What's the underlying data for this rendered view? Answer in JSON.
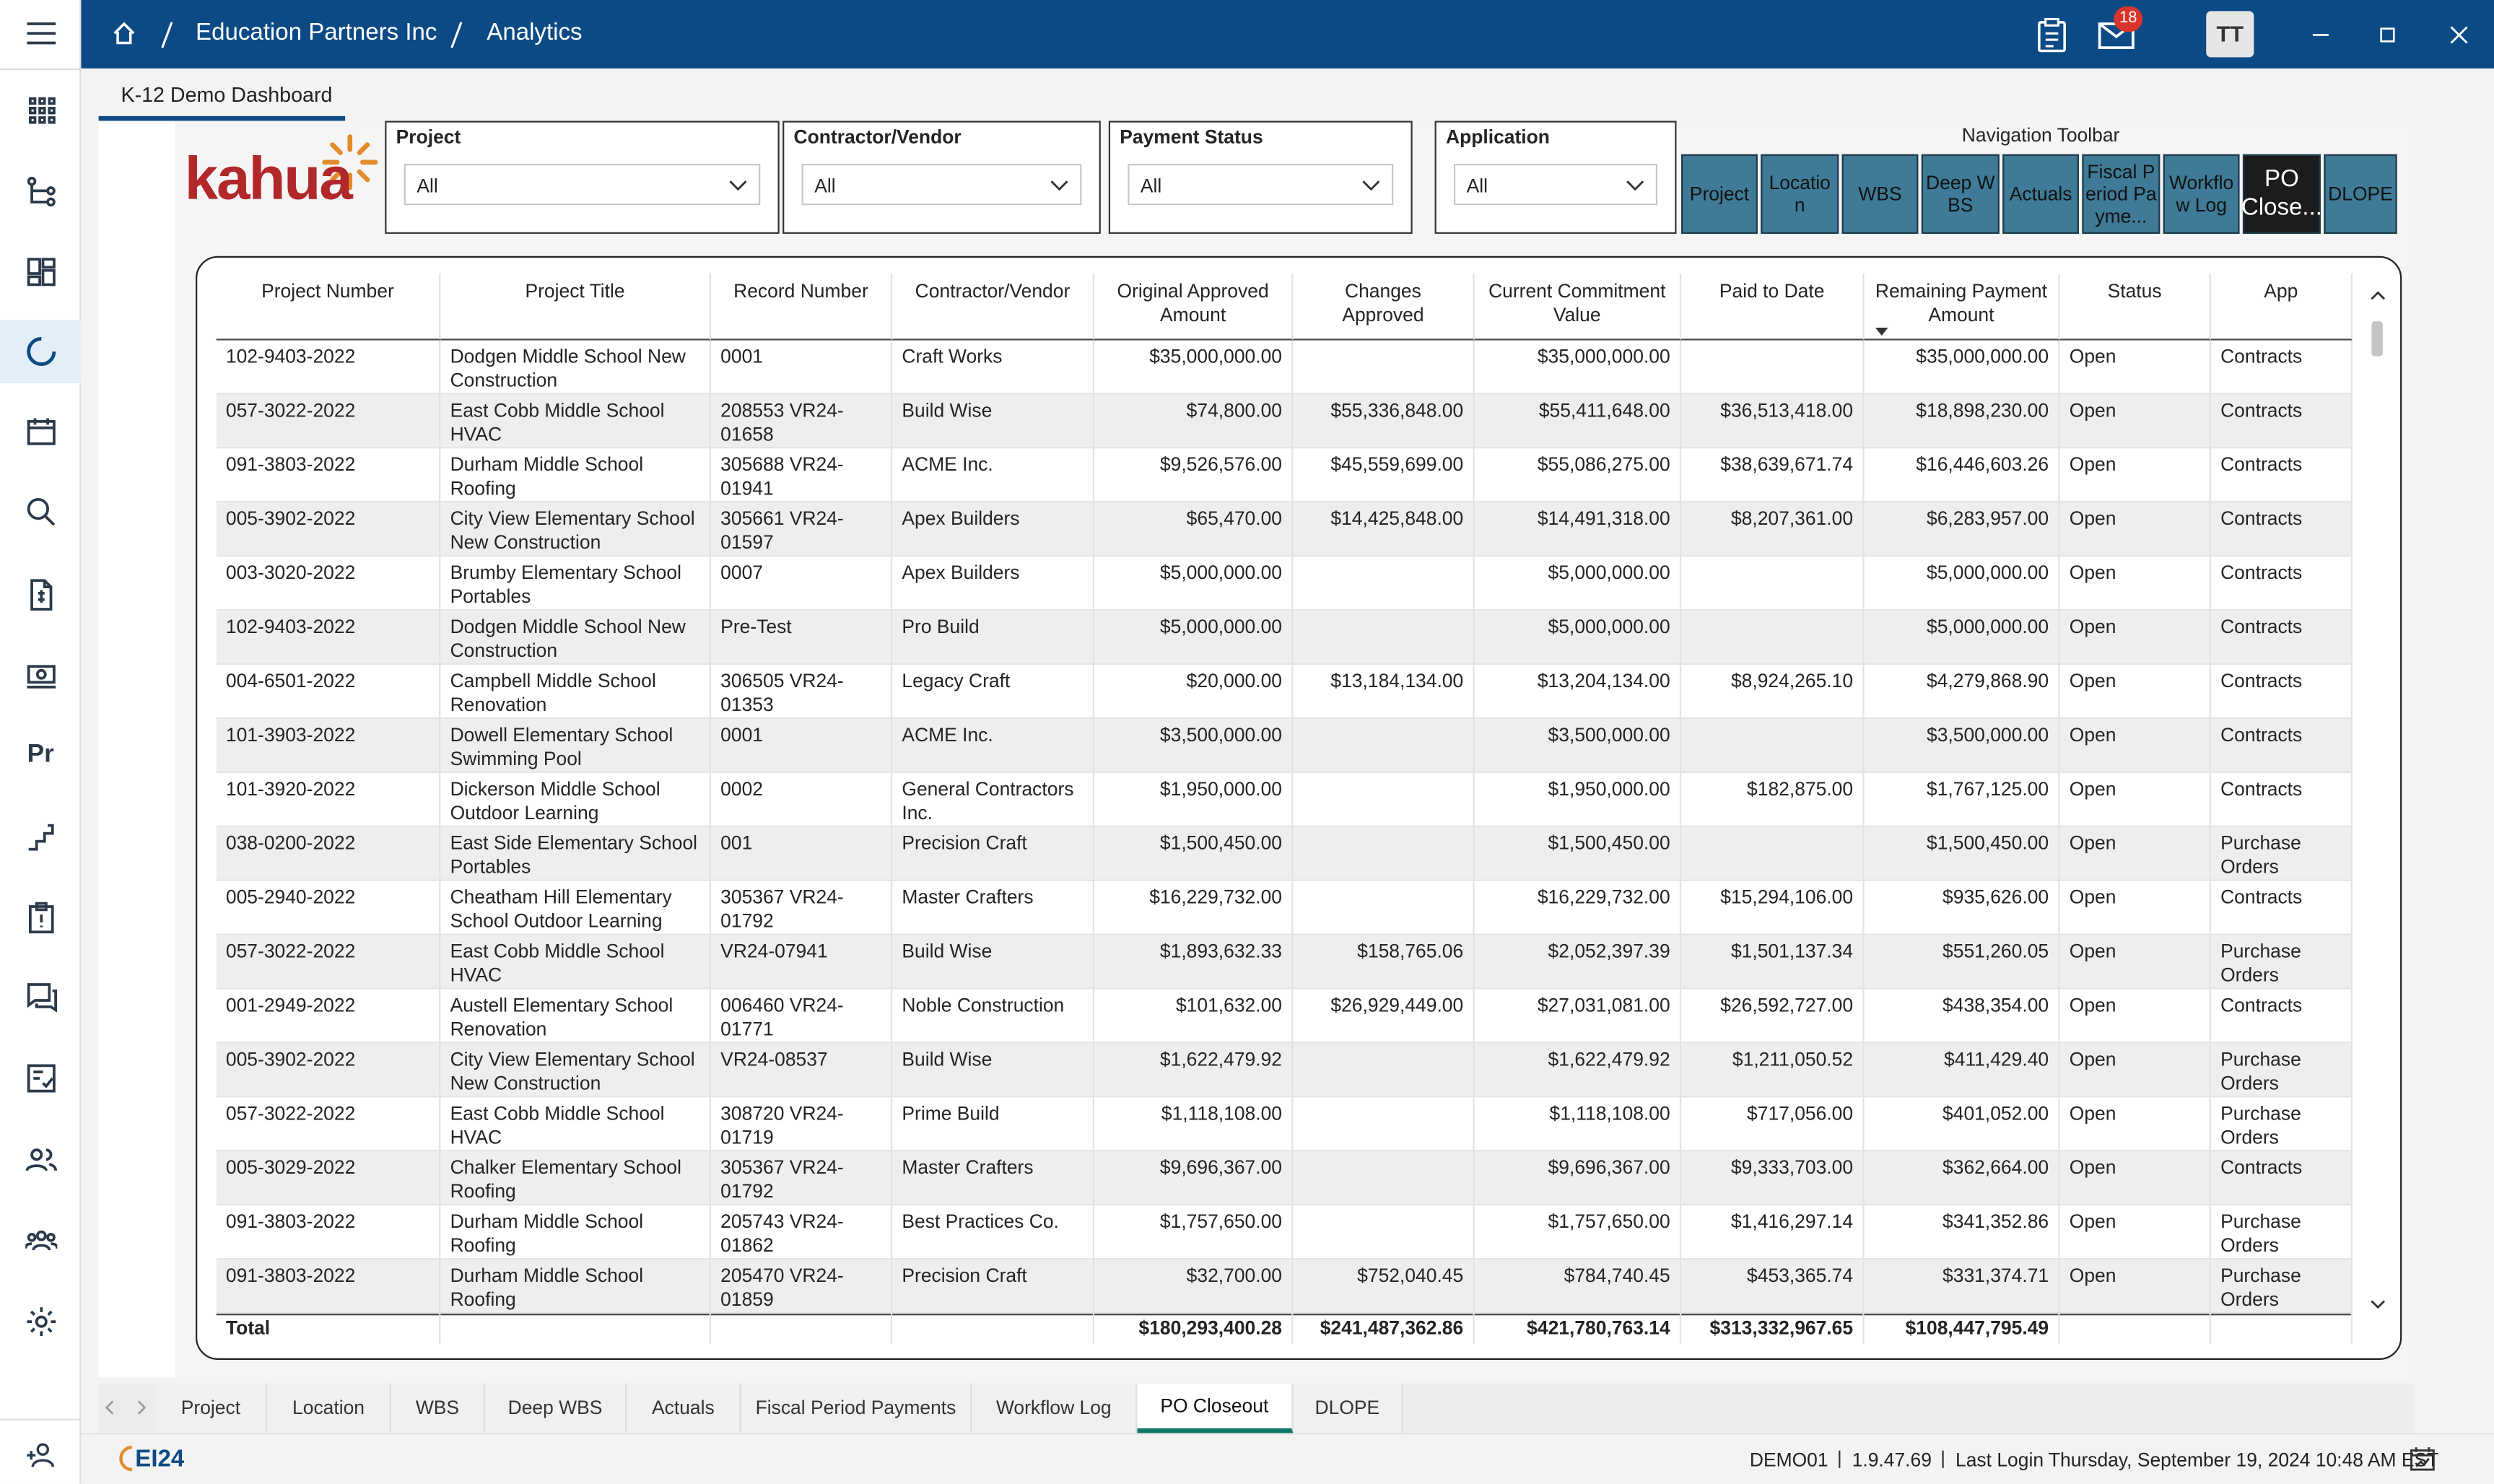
{
  "header": {
    "breadcrumb": [
      "Education Partners Inc",
      "Analytics"
    ],
    "mail_badge": "18",
    "avatar": "TT"
  },
  "sidebar": {
    "pr_label": "Pr"
  },
  "page_tab": "K-12 Demo Dashboard",
  "logo": "kahua",
  "filters": [
    {
      "label": "Project",
      "value": "All"
    },
    {
      "label": "Contractor/Vendor",
      "value": "All"
    },
    {
      "label": "Payment Status",
      "value": "All"
    },
    {
      "label": "Application",
      "value": "All"
    }
  ],
  "navigation_toolbar": {
    "title": "Navigation Toolbar",
    "buttons": [
      "Project",
      "Location",
      "WBS",
      "Deep WBS",
      "Actuals",
      "Fiscal Period Payme...",
      "Workflow Log",
      "PO Close...",
      "DLOPE"
    ]
  },
  "table": {
    "columns": [
      "Project Number",
      "Project Title",
      "Record Number",
      "Contractor/Vendor",
      "Original Approved Amount",
      "Changes Approved",
      "Current Commitment Value",
      "Paid to Date",
      "Remaining Payment Amount",
      "Status",
      "App"
    ],
    "rows": [
      [
        "102-9403-2022",
        "Dodgen Middle School New Construction",
        "0001",
        "Craft Works",
        "$35,000,000.00",
        null,
        "$35,000,000.00",
        null,
        "$35,000,000.00",
        "Open",
        "Contracts"
      ],
      [
        "057-3022-2022",
        "East Cobb Middle School HVAC",
        "208553 VR24-01658",
        "Build Wise",
        "$74,800.00",
        "$55,336,848.00",
        "$55,411,648.00",
        "$36,513,418.00",
        "$18,898,230.00",
        "Open",
        "Contracts"
      ],
      [
        "091-3803-2022",
        "Durham Middle School Roofing",
        "305688 VR24-01941",
        "ACME Inc.",
        "$9,526,576.00",
        "$45,559,699.00",
        "$55,086,275.00",
        "$38,639,671.74",
        "$16,446,603.26",
        "Open",
        "Contracts"
      ],
      [
        "005-3902-2022",
        "City View Elementary School New Construction",
        "305661 VR24-01597",
        "Apex Builders",
        "$65,470.00",
        "$14,425,848.00",
        "$14,491,318.00",
        "$8,207,361.00",
        "$6,283,957.00",
        "Open",
        "Contracts"
      ],
      [
        "003-3020-2022",
        "Brumby Elementary School Portables",
        "0007",
        "Apex Builders",
        "$5,000,000.00",
        null,
        "$5,000,000.00",
        null,
        "$5,000,000.00",
        "Open",
        "Contracts"
      ],
      [
        "102-9403-2022",
        "Dodgen Middle School New Construction",
        "Pre-Test",
        "Pro Build",
        "$5,000,000.00",
        null,
        "$5,000,000.00",
        null,
        "$5,000,000.00",
        "Open",
        "Contracts"
      ],
      [
        "004-6501-2022",
        "Campbell Middle School Renovation",
        "306505 VR24-01353",
        "Legacy Craft",
        "$20,000.00",
        "$13,184,134.00",
        "$13,204,134.00",
        "$8,924,265.10",
        "$4,279,868.90",
        "Open",
        "Contracts"
      ],
      [
        "101-3903-2022",
        "Dowell Elementary School Swimming Pool",
        "0001",
        "ACME Inc.",
        "$3,500,000.00",
        null,
        "$3,500,000.00",
        null,
        "$3,500,000.00",
        "Open",
        "Contracts"
      ],
      [
        "101-3920-2022",
        "Dickerson Middle School Outdoor Learning",
        "0002",
        "General Contractors Inc.",
        "$1,950,000.00",
        null,
        "$1,950,000.00",
        "$182,875.00",
        "$1,767,125.00",
        "Open",
        "Contracts"
      ],
      [
        "038-0200-2022",
        "East Side Elementary School Portables",
        "001",
        "Precision Craft",
        "$1,500,450.00",
        null,
        "$1,500,450.00",
        null,
        "$1,500,450.00",
        "Open",
        "Purchase Orders"
      ],
      [
        "005-2940-2022",
        "Cheatham Hill Elementary School Outdoor Learning",
        "305367 VR24-01792",
        "Master Crafters",
        "$16,229,732.00",
        null,
        "$16,229,732.00",
        "$15,294,106.00",
        "$935,626.00",
        "Open",
        "Contracts"
      ],
      [
        "057-3022-2022",
        "East Cobb Middle School HVAC",
        "VR24-07941",
        "Build Wise",
        "$1,893,632.33",
        "$158,765.06",
        "$2,052,397.39",
        "$1,501,137.34",
        "$551,260.05",
        "Open",
        "Purchase Orders"
      ],
      [
        "001-2949-2022",
        "Austell Elementary School Renovation",
        "006460 VR24-01771",
        "Noble Construction",
        "$101,632.00",
        "$26,929,449.00",
        "$27,031,081.00",
        "$26,592,727.00",
        "$438,354.00",
        "Open",
        "Contracts"
      ],
      [
        "005-3902-2022",
        "City View Elementary School New Construction",
        "VR24-08537",
        "Build Wise",
        "$1,622,479.92",
        null,
        "$1,622,479.92",
        "$1,211,050.52",
        "$411,429.40",
        "Open",
        "Purchase Orders"
      ],
      [
        "057-3022-2022",
        "East Cobb Middle School HVAC",
        "308720 VR24-01719",
        "Prime Build",
        "$1,118,108.00",
        null,
        "$1,118,108.00",
        "$717,056.00",
        "$401,052.00",
        "Open",
        "Purchase Orders"
      ],
      [
        "005-3029-2022",
        "Chalker Elementary School Roofing",
        "305367 VR24-01792",
        "Master Crafters",
        "$9,696,367.00",
        null,
        "$9,696,367.00",
        "$9,333,703.00",
        "$362,664.00",
        "Open",
        "Contracts"
      ],
      [
        "091-3803-2022",
        "Durham Middle School Roofing",
        "205743 VR24-01862",
        "Best Practices Co.",
        "$1,757,650.00",
        null,
        "$1,757,650.00",
        "$1,416,297.14",
        "$341,352.86",
        "Open",
        "Purchase Orders"
      ],
      [
        "091-3803-2022",
        "Durham Middle School Roofing",
        "205470 VR24-01859",
        "Precision Craft",
        "$32,700.00",
        "$752,040.45",
        "$784,740.45",
        "$453,365.74",
        "$331,374.71",
        "Open",
        "Purchase Orders"
      ]
    ],
    "total": [
      "Total",
      null,
      null,
      null,
      "$180,293,400.28",
      "$241,487,362.86",
      "$421,780,763.14",
      "$313,332,967.65",
      "$108,447,795.49",
      null,
      null
    ]
  },
  "bottom_tabs": [
    "Project",
    "Location",
    "WBS",
    "Deep WBS",
    "Actuals",
    "Fiscal Period Payments",
    "Workflow Log",
    "PO Closeout",
    "DLOPE"
  ],
  "footer": {
    "logo": "EI24",
    "environment": "DEMO01",
    "version": "1.9.47.69",
    "last_login": "Last Login Thursday, September 19, 2024 10:48 AM EST"
  }
}
